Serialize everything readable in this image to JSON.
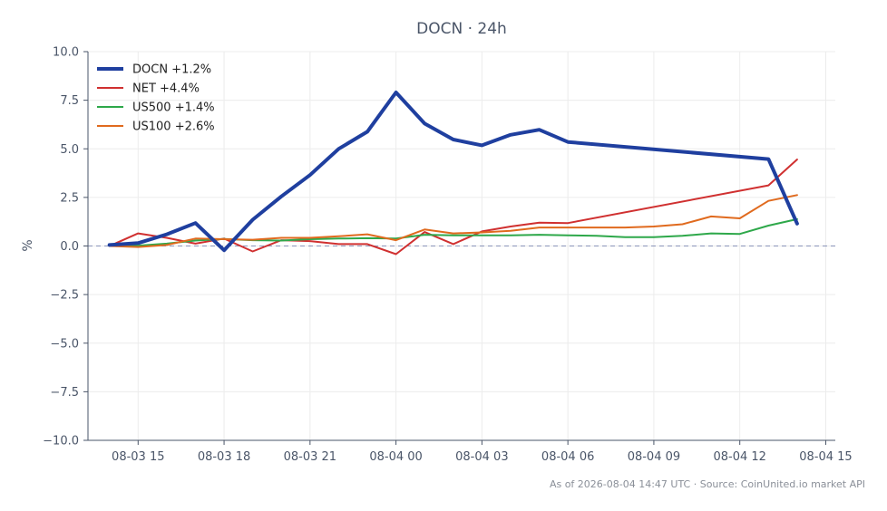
{
  "chart_data": {
    "type": "line",
    "title": "DOCN · 24h",
    "xlabel": "",
    "ylabel": "%",
    "ylim": [
      -10,
      10
    ],
    "yticks": [
      10.0,
      7.5,
      5.0,
      2.5,
      0.0,
      -2.5,
      -5.0,
      -7.5,
      -10.0
    ],
    "ytick_labels": [
      "10.0",
      "7.5",
      "5.0",
      "2.5",
      "0.0",
      "−2.5",
      "−5.0",
      "−7.5",
      "−10.0"
    ],
    "xlim": [
      "2026-08-03 13:15",
      "2026-08-04 15:20"
    ],
    "xticks": [
      "2026-08-03 15:00",
      "2026-08-03 18:00",
      "2026-08-03 21:00",
      "2026-08-04 00:00",
      "2026-08-04 03:00",
      "2026-08-04 06:00",
      "2026-08-04 09:00",
      "2026-08-04 12:00",
      "2026-08-04 15:00"
    ],
    "xtick_labels": [
      "08-03 15",
      "08-03 18",
      "08-03 21",
      "08-04 00",
      "08-04 03",
      "08-04 06",
      "08-04 09",
      "08-04 12",
      "08-04 15"
    ],
    "grid": true,
    "zero_line": true,
    "legend_position": "top-left",
    "footer": "As of 2026-08-04 14:47 UTC · Source: CoinUnited.io market API",
    "series": [
      {
        "name": "DOCN +1.2%",
        "color": "#1f3f9f",
        "line_width": 4,
        "x": [
          "2026-08-03 14:00",
          "2026-08-03 15:00",
          "2026-08-03 16:00",
          "2026-08-03 17:00",
          "2026-08-03 18:00",
          "2026-08-03 19:00",
          "2026-08-03 20:00",
          "2026-08-03 21:00",
          "2026-08-03 22:00",
          "2026-08-03 23:00",
          "2026-08-04 00:00",
          "2026-08-04 01:00",
          "2026-08-04 02:00",
          "2026-08-04 03:00",
          "2026-08-04 04:00",
          "2026-08-04 05:00",
          "2026-08-04 06:00",
          "2026-08-04 13:00",
          "2026-08-04 14:00"
        ],
        "y": [
          0.05,
          0.15,
          0.6,
          1.18,
          -0.22,
          1.35,
          2.55,
          3.65,
          5.0,
          5.88,
          7.9,
          6.3,
          5.48,
          5.18,
          5.72,
          5.98,
          5.35,
          4.47,
          1.15
        ]
      },
      {
        "name": "NET +4.4%",
        "color": "#d03030",
        "line_width": 2,
        "x": [
          "2026-08-03 14:00",
          "2026-08-03 15:00",
          "2026-08-03 16:00",
          "2026-08-03 17:00",
          "2026-08-03 18:00",
          "2026-08-03 19:00",
          "2026-08-03 20:00",
          "2026-08-03 21:00",
          "2026-08-03 22:00",
          "2026-08-03 23:00",
          "2026-08-04 00:00",
          "2026-08-04 01:00",
          "2026-08-04 02:00",
          "2026-08-04 03:00",
          "2026-08-04 04:00",
          "2026-08-04 05:00",
          "2026-08-04 06:00",
          "2026-08-04 13:00",
          "2026-08-04 14:00"
        ],
        "y": [
          0.0,
          0.65,
          0.42,
          0.12,
          0.38,
          -0.28,
          0.3,
          0.25,
          0.1,
          0.1,
          -0.42,
          0.72,
          0.1,
          0.75,
          1.0,
          1.2,
          1.18,
          3.12,
          4.45
        ]
      },
      {
        "name": "US500 +1.4%",
        "color": "#2ea84a",
        "line_width": 2,
        "x": [
          "2026-08-03 14:00",
          "2026-08-03 15:00",
          "2026-08-03 16:00",
          "2026-08-03 17:00",
          "2026-08-03 18:00",
          "2026-08-03 19:00",
          "2026-08-03 20:00",
          "2026-08-03 21:00",
          "2026-08-03 22:00",
          "2026-08-03 23:00",
          "2026-08-04 00:00",
          "2026-08-04 01:00",
          "2026-08-04 02:00",
          "2026-08-04 03:00",
          "2026-08-04 04:00",
          "2026-08-04 05:00",
          "2026-08-04 06:00",
          "2026-08-04 07:00",
          "2026-08-04 08:00",
          "2026-08-04 09:00",
          "2026-08-04 10:00",
          "2026-08-04 11:00",
          "2026-08-04 12:00",
          "2026-08-04 13:00",
          "2026-08-04 14:00"
        ],
        "y": [
          0.05,
          0.02,
          0.12,
          0.28,
          0.36,
          0.3,
          0.28,
          0.35,
          0.38,
          0.4,
          0.38,
          0.58,
          0.55,
          0.55,
          0.55,
          0.58,
          0.55,
          0.52,
          0.45,
          0.45,
          0.52,
          0.65,
          0.62,
          1.05,
          1.38
        ]
      },
      {
        "name": "US100 +2.6%",
        "color": "#e06a1e",
        "line_width": 2,
        "x": [
          "2026-08-03 14:00",
          "2026-08-03 15:00",
          "2026-08-03 16:00",
          "2026-08-03 17:00",
          "2026-08-03 18:00",
          "2026-08-03 19:00",
          "2026-08-03 20:00",
          "2026-08-03 21:00",
          "2026-08-03 22:00",
          "2026-08-03 23:00",
          "2026-08-04 00:00",
          "2026-08-04 01:00",
          "2026-08-04 02:00",
          "2026-08-04 03:00",
          "2026-08-04 04:00",
          "2026-08-04 05:00",
          "2026-08-04 06:00",
          "2026-08-04 07:00",
          "2026-08-04 08:00",
          "2026-08-04 09:00",
          "2026-08-04 10:00",
          "2026-08-04 11:00",
          "2026-08-04 12:00",
          "2026-08-04 13:00",
          "2026-08-04 14:00"
        ],
        "y": [
          0.0,
          -0.05,
          0.05,
          0.38,
          0.35,
          0.32,
          0.42,
          0.42,
          0.5,
          0.6,
          0.3,
          0.85,
          0.65,
          0.7,
          0.78,
          0.95,
          0.95,
          0.95,
          0.95,
          1.0,
          1.12,
          1.52,
          1.42,
          2.32,
          2.62
        ]
      }
    ]
  }
}
